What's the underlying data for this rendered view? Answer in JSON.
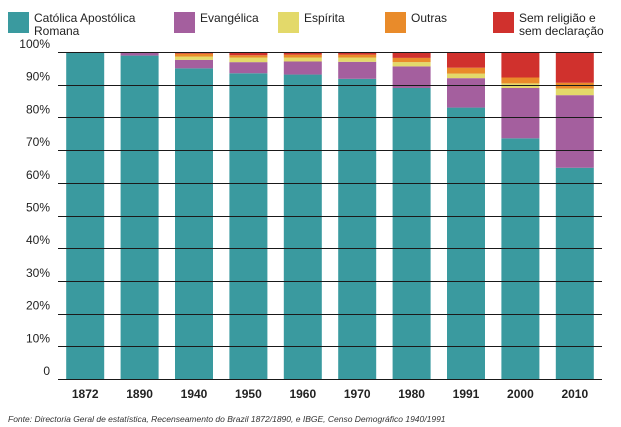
{
  "chart_data": {
    "type": "bar",
    "stacked": true,
    "categories": [
      "1872",
      "1890",
      "1940",
      "1950",
      "1960",
      "1970",
      "1980",
      "1991",
      "2000",
      "2010"
    ],
    "series": [
      {
        "name": "Católica Apostólica\nRomana",
        "color": "#3a9a9f",
        "values": [
          100,
          98.9,
          95.0,
          93.5,
          93.1,
          91.8,
          89.0,
          83.0,
          73.6,
          64.6
        ]
      },
      {
        "name": "Evangélica",
        "color": "#a45f9e",
        "values": [
          0,
          1.0,
          2.6,
          3.4,
          4.0,
          5.2,
          6.6,
          9.0,
          15.4,
          22.2
        ]
      },
      {
        "name": "Espírita",
        "color": "#e3d96a",
        "values": [
          0,
          0,
          1.0,
          1.4,
          1.2,
          1.3,
          1.3,
          1.4,
          1.4,
          2.0
        ]
      },
      {
        "name": "Outras",
        "color": "#e98b2a",
        "values": [
          0,
          0.1,
          0.9,
          0.7,
          0.9,
          0.9,
          1.3,
          1.8,
          1.8,
          1.8
        ]
      },
      {
        "name": "Sem religião e\nsem declaração",
        "color": "#d0312d",
        "values": [
          0,
          0,
          0.5,
          1.0,
          0.8,
          0.8,
          1.8,
          4.8,
          7.8,
          9.4
        ]
      }
    ],
    "yticks": [
      "0",
      "10%",
      "20%",
      "30%",
      "40%",
      "50%",
      "60%",
      "70%",
      "80%",
      "90%",
      "100%"
    ],
    "ylim": [
      0,
      100
    ],
    "grid": true,
    "legend_position": "top",
    "source": "Fonte: Directoria Geral de estatística, Recenseamento do Brazil 1872/1890, e IBGE, Censo Demográfico 1940/1991"
  }
}
